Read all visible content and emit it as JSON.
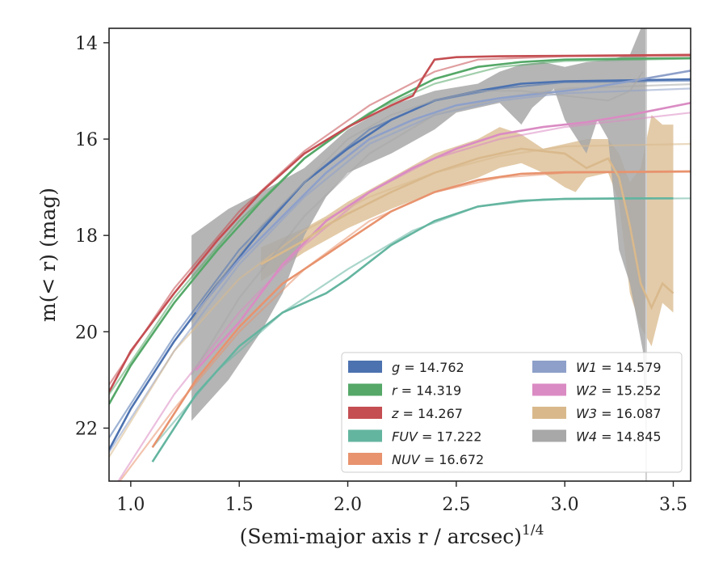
{
  "chart_data": {
    "type": "line",
    "title": "",
    "xlabel": "(Semi-major axis r / arcsec)",
    "xlabel_superscript": "1/4",
    "ylabel": "m(< r) (mag)",
    "xlim": [
      0.9,
      3.58
    ],
    "ylim": [
      23.1,
      13.7
    ],
    "y_inverted": true,
    "grid": false,
    "legend_position": "lower-right",
    "x_ticks": [
      1.0,
      1.5,
      2.0,
      2.5,
      3.0,
      3.5
    ],
    "x_tick_labels": [
      "1.0",
      "1.5",
      "2.0",
      "2.5",
      "3.0",
      "3.5"
    ],
    "y_ticks": [
      14,
      16,
      18,
      20,
      22
    ],
    "y_tick_labels": [
      "14",
      "16",
      "18",
      "20",
      "22"
    ],
    "series": [
      {
        "label": "g = 14.762",
        "italic": "g",
        "value": "14.762",
        "color": "#4C72B0",
        "data": [
          [
            0.9,
            22.45
          ],
          [
            1.0,
            21.6
          ],
          [
            1.2,
            20.2
          ],
          [
            1.4,
            19.0
          ],
          [
            1.6,
            17.9
          ],
          [
            1.8,
            16.9
          ],
          [
            2.0,
            16.2
          ],
          [
            2.2,
            15.6
          ],
          [
            2.4,
            15.2
          ],
          [
            2.6,
            15.0
          ],
          [
            2.8,
            14.85
          ],
          [
            3.0,
            14.8
          ],
          [
            3.3,
            14.78
          ],
          [
            3.58,
            14.76
          ]
        ],
        "model": [
          [
            0.9,
            22.2
          ],
          [
            1.2,
            20.1
          ],
          [
            1.5,
            18.3
          ],
          [
            1.8,
            16.9
          ],
          [
            2.1,
            15.8
          ],
          [
            2.4,
            15.2
          ],
          [
            2.7,
            14.95
          ],
          [
            3.0,
            14.82
          ],
          [
            3.58,
            14.79
          ]
        ]
      },
      {
        "label": "r = 14.319",
        "italic": "r",
        "value": "14.319",
        "color": "#55A868",
        "data": [
          [
            0.9,
            21.5
          ],
          [
            1.0,
            20.7
          ],
          [
            1.2,
            19.4
          ],
          [
            1.4,
            18.3
          ],
          [
            1.6,
            17.3
          ],
          [
            1.8,
            16.4
          ],
          [
            2.0,
            15.75
          ],
          [
            2.2,
            15.2
          ],
          [
            2.4,
            14.75
          ],
          [
            2.6,
            14.5
          ],
          [
            2.8,
            14.4
          ],
          [
            3.0,
            14.35
          ],
          [
            3.3,
            14.33
          ],
          [
            3.58,
            14.32
          ]
        ],
        "model": [
          [
            0.9,
            21.3
          ],
          [
            1.2,
            19.3
          ],
          [
            1.5,
            17.7
          ],
          [
            1.8,
            16.4
          ],
          [
            2.1,
            15.45
          ],
          [
            2.4,
            14.85
          ],
          [
            2.7,
            14.5
          ],
          [
            3.0,
            14.38
          ],
          [
            3.58,
            14.33
          ]
        ]
      },
      {
        "label": "z = 14.267",
        "italic": "z",
        "value": "14.267",
        "color": "#C44E52",
        "data": [
          [
            0.9,
            21.25
          ],
          [
            1.0,
            20.4
          ],
          [
            1.2,
            19.2
          ],
          [
            1.4,
            18.1
          ],
          [
            1.6,
            17.1
          ],
          [
            1.8,
            16.3
          ],
          [
            2.0,
            15.75
          ],
          [
            2.2,
            15.3
          ],
          [
            2.3,
            15.1
          ],
          [
            2.35,
            14.7
          ],
          [
            2.4,
            14.35
          ],
          [
            2.5,
            14.3
          ],
          [
            2.7,
            14.28
          ],
          [
            3.0,
            14.27
          ],
          [
            3.3,
            14.26
          ],
          [
            3.58,
            14.25
          ]
        ],
        "model": [
          [
            0.9,
            21.1
          ],
          [
            1.2,
            19.1
          ],
          [
            1.5,
            17.5
          ],
          [
            1.8,
            16.25
          ],
          [
            2.1,
            15.3
          ],
          [
            2.4,
            14.6
          ],
          [
            2.6,
            14.35
          ],
          [
            3.0,
            14.28
          ],
          [
            3.58,
            14.27
          ]
        ]
      },
      {
        "label": "FUV = 17.222",
        "italic": "FUV",
        "value": "17.222",
        "color": "#64B5A0",
        "data": [
          [
            1.1,
            22.7
          ],
          [
            1.3,
            21.3
          ],
          [
            1.5,
            20.3
          ],
          [
            1.7,
            19.6
          ],
          [
            1.9,
            19.2
          ],
          [
            2.0,
            18.9
          ],
          [
            2.2,
            18.2
          ],
          [
            2.4,
            17.7
          ],
          [
            2.6,
            17.4
          ],
          [
            2.8,
            17.28
          ],
          [
            3.0,
            17.24
          ],
          [
            3.3,
            17.23
          ],
          [
            3.5,
            17.23
          ]
        ],
        "model": [
          [
            1.1,
            22.4
          ],
          [
            1.4,
            20.8
          ],
          [
            1.7,
            19.6
          ],
          [
            2.0,
            18.7
          ],
          [
            2.3,
            17.9
          ],
          [
            2.6,
            17.4
          ],
          [
            2.9,
            17.25
          ],
          [
            3.58,
            17.23
          ]
        ]
      },
      {
        "label": "NUV = 16.672",
        "italic": "NUV",
        "value": "16.672",
        "color": "#E8936E",
        "data": [
          [
            1.1,
            22.4
          ],
          [
            1.3,
            21.0
          ],
          [
            1.5,
            19.9
          ],
          [
            1.7,
            19.0
          ],
          [
            1.9,
            18.4
          ],
          [
            2.0,
            18.1
          ],
          [
            2.2,
            17.5
          ],
          [
            2.4,
            17.1
          ],
          [
            2.6,
            16.85
          ],
          [
            2.8,
            16.72
          ],
          [
            3.0,
            16.69
          ],
          [
            3.3,
            16.68
          ],
          [
            3.58,
            16.67
          ]
        ],
        "model": [
          [
            0.9,
            23.4
          ],
          [
            1.2,
            21.6
          ],
          [
            1.5,
            20.0
          ],
          [
            1.8,
            18.7
          ],
          [
            2.1,
            17.7
          ],
          [
            2.4,
            17.1
          ],
          [
            2.7,
            16.8
          ],
          [
            3.0,
            16.7
          ],
          [
            3.58,
            16.68
          ]
        ]
      },
      {
        "label": "W1 = 14.579",
        "italic": "W1",
        "value": "14.579",
        "color": "#8EA0C9",
        "data": [
          [
            1.3,
            19.6
          ],
          [
            1.5,
            18.5
          ],
          [
            1.7,
            17.6
          ],
          [
            1.9,
            16.7
          ],
          [
            2.1,
            16.0
          ],
          [
            2.3,
            15.6
          ],
          [
            2.5,
            15.3
          ],
          [
            2.7,
            15.15
          ],
          [
            2.9,
            15.05
          ],
          [
            3.1,
            14.95
          ],
          [
            3.3,
            14.8
          ],
          [
            3.58,
            14.58
          ]
        ],
        "model": [
          [
            0.9,
            22.5
          ],
          [
            1.2,
            20.4
          ],
          [
            1.5,
            18.6
          ],
          [
            1.8,
            17.2
          ],
          [
            2.1,
            16.1
          ],
          [
            2.4,
            15.5
          ],
          [
            2.7,
            15.2
          ],
          [
            3.0,
            15.05
          ],
          [
            3.58,
            14.95
          ]
        ]
      },
      {
        "label": "W2 = 15.252",
        "italic": "W2",
        "value": "15.252",
        "color": "#DA8BC3",
        "data": [
          [
            1.3,
            20.8
          ],
          [
            1.5,
            19.8
          ],
          [
            1.7,
            18.6
          ],
          [
            1.9,
            17.7
          ],
          [
            2.1,
            17.1
          ],
          [
            2.3,
            16.6
          ],
          [
            2.5,
            16.2
          ],
          [
            2.7,
            15.9
          ],
          [
            2.9,
            15.75
          ],
          [
            3.1,
            15.65
          ],
          [
            3.3,
            15.5
          ],
          [
            3.58,
            15.25
          ]
        ],
        "model": [
          [
            0.9,
            23.4
          ],
          [
            1.2,
            21.3
          ],
          [
            1.5,
            19.6
          ],
          [
            1.8,
            18.2
          ],
          [
            2.1,
            17.1
          ],
          [
            2.4,
            16.4
          ],
          [
            2.7,
            16.0
          ],
          [
            3.0,
            15.75
          ],
          [
            3.58,
            15.45
          ]
        ]
      },
      {
        "label": "W3 = 16.087",
        "italic": "W3",
        "value": "16.087",
        "color": "#D9B98C",
        "data": [
          [
            1.6,
            18.6
          ],
          [
            1.8,
            18.1
          ],
          [
            1.9,
            17.8
          ],
          [
            2.0,
            17.55
          ],
          [
            2.2,
            17.1
          ],
          [
            2.4,
            16.7
          ],
          [
            2.6,
            16.4
          ],
          [
            2.8,
            16.2
          ],
          [
            3.0,
            16.3
          ],
          [
            3.1,
            16.6
          ],
          [
            3.2,
            16.4
          ],
          [
            3.25,
            16.8
          ],
          [
            3.3,
            17.8
          ],
          [
            3.35,
            19.0
          ],
          [
            3.4,
            19.5
          ],
          [
            3.45,
            19.0
          ],
          [
            3.5,
            19.2
          ]
        ],
        "band_upper": [
          [
            1.6,
            18.25
          ],
          [
            1.8,
            17.85
          ],
          [
            1.9,
            17.6
          ],
          [
            2.0,
            17.3
          ],
          [
            2.2,
            16.8
          ],
          [
            2.4,
            16.3
          ],
          [
            2.6,
            16.0
          ],
          [
            2.7,
            15.75
          ],
          [
            2.8,
            15.9
          ],
          [
            2.9,
            16.2
          ],
          [
            3.0,
            16.1
          ],
          [
            3.1,
            16.0
          ],
          [
            3.2,
            16.0
          ],
          [
            3.25,
            16.3
          ],
          [
            3.3,
            16.9
          ],
          [
            3.35,
            16.6
          ],
          [
            3.4,
            15.5
          ],
          [
            3.45,
            15.7
          ],
          [
            3.5,
            15.7
          ]
        ],
        "band_lower": [
          [
            1.6,
            18.95
          ],
          [
            1.8,
            18.35
          ],
          [
            1.9,
            18.1
          ],
          [
            2.0,
            17.85
          ],
          [
            2.2,
            17.45
          ],
          [
            2.4,
            17.1
          ],
          [
            2.6,
            16.8
          ],
          [
            2.7,
            16.6
          ],
          [
            2.8,
            16.5
          ],
          [
            2.9,
            16.7
          ],
          [
            3.0,
            17.0
          ],
          [
            3.05,
            17.1
          ],
          [
            3.1,
            16.8
          ],
          [
            3.2,
            16.7
          ],
          [
            3.25,
            17.3
          ],
          [
            3.3,
            19.2
          ],
          [
            3.35,
            19.9
          ],
          [
            3.4,
            20.3
          ],
          [
            3.45,
            19.4
          ],
          [
            3.5,
            19.6
          ]
        ],
        "model": [
          [
            0.9,
            22.6
          ],
          [
            1.2,
            20.4
          ],
          [
            1.5,
            18.9
          ],
          [
            1.8,
            17.9
          ],
          [
            2.1,
            17.2
          ],
          [
            2.4,
            16.7
          ],
          [
            2.7,
            16.35
          ],
          [
            3.0,
            16.15
          ],
          [
            3.58,
            16.1
          ]
        ]
      },
      {
        "label": "W4 = 14.845",
        "italic": "W4",
        "value": "14.845",
        "color": "#A8A8A8",
        "data": [
          [
            1.28,
            19.8
          ],
          [
            1.4,
            19.0
          ],
          [
            1.6,
            17.8
          ],
          [
            1.8,
            16.9
          ],
          [
            2.0,
            16.0
          ],
          [
            2.2,
            15.5
          ],
          [
            2.4,
            15.2
          ],
          [
            2.6,
            15.0
          ],
          [
            2.8,
            15.0
          ],
          [
            3.0,
            15.1
          ],
          [
            3.2,
            15.2
          ],
          [
            3.3,
            15.0
          ],
          [
            3.36,
            14.6
          ]
        ],
        "band_upper": [
          [
            1.28,
            18.0
          ],
          [
            1.45,
            17.45
          ],
          [
            1.6,
            17.1
          ],
          [
            1.8,
            16.6
          ],
          [
            1.9,
            16.2
          ],
          [
            2.0,
            15.8
          ],
          [
            2.2,
            15.3
          ],
          [
            2.4,
            15.0
          ],
          [
            2.6,
            14.85
          ],
          [
            2.7,
            14.6
          ],
          [
            2.8,
            14.45
          ],
          [
            2.9,
            14.4
          ],
          [
            3.0,
            14.5
          ],
          [
            3.1,
            14.4
          ],
          [
            3.2,
            14.35
          ],
          [
            3.3,
            14.25
          ],
          [
            3.36,
            13.6
          ],
          [
            3.375,
            13.6
          ]
        ],
        "band_lower": [
          [
            3.375,
            22.5
          ],
          [
            3.36,
            20.4
          ],
          [
            3.3,
            19.0
          ],
          [
            3.25,
            18.3
          ],
          [
            3.2,
            16.0
          ],
          [
            3.15,
            15.6
          ],
          [
            3.1,
            16.3
          ],
          [
            3.0,
            15.6
          ],
          [
            2.95,
            14.95
          ],
          [
            2.85,
            15.35
          ],
          [
            2.8,
            15.7
          ],
          [
            2.7,
            15.25
          ],
          [
            2.6,
            15.35
          ],
          [
            2.5,
            15.45
          ],
          [
            2.4,
            15.8
          ],
          [
            2.2,
            16.3
          ],
          [
            2.0,
            16.7
          ],
          [
            1.9,
            17.2
          ],
          [
            1.8,
            18.0
          ],
          [
            1.7,
            19.2
          ],
          [
            1.6,
            20.0
          ],
          [
            1.45,
            21.0
          ],
          [
            1.28,
            21.85
          ]
        ],
        "model": [
          [
            1.28,
            20.9
          ],
          [
            1.5,
            19.3
          ],
          [
            1.8,
            17.6
          ],
          [
            2.1,
            16.3
          ],
          [
            2.4,
            15.5
          ],
          [
            2.7,
            15.15
          ],
          [
            3.0,
            14.95
          ],
          [
            3.58,
            14.86
          ]
        ]
      }
    ]
  }
}
